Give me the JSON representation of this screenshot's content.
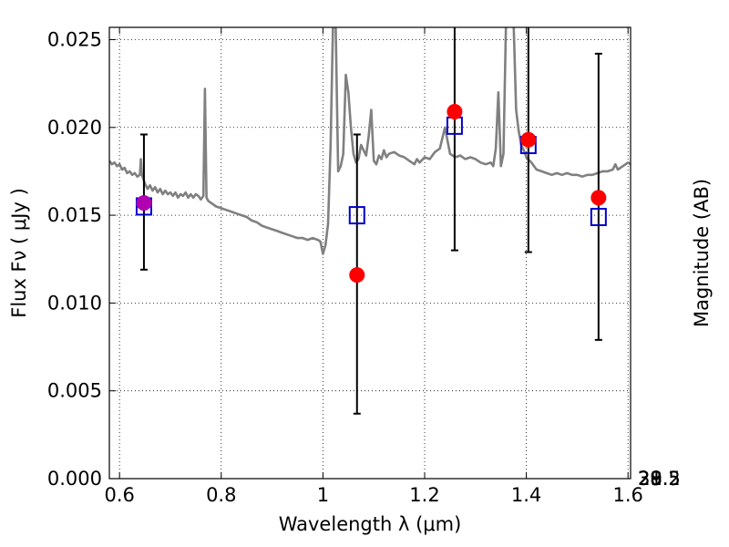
{
  "chart_data": {
    "type": "scatter",
    "xlabel": "Wavelength  λ (μm)",
    "ylabel": "Flux  Fν  ( μJy )",
    "ylabel_right": "Magnitude (AB)",
    "xlim": [
      0.58,
      1.605
    ],
    "ylim": [
      0.0,
      0.0257
    ],
    "grid": true,
    "x_ticks": [
      {
        "value": 0.6,
        "label": "0.6"
      },
      {
        "value": 0.8,
        "label": "0.8"
      },
      {
        "value": 1.0,
        "label": "1"
      },
      {
        "value": 1.2,
        "label": "1.2"
      },
      {
        "value": 1.4,
        "label": "1.4"
      },
      {
        "value": 1.6,
        "label": "1.6"
      }
    ],
    "y_ticks": [
      {
        "value": 0.0,
        "label": "0.000"
      },
      {
        "value": 0.005,
        "label": "0.005"
      },
      {
        "value": 0.01,
        "label": "0.010"
      },
      {
        "value": 0.015,
        "label": "0.015"
      },
      {
        "value": 0.02,
        "label": "0.020"
      },
      {
        "value": 0.025,
        "label": "0.025"
      }
    ],
    "right_ticks": [
      {
        "mag": 28.0,
        "label": "28"
      },
      {
        "mag": 28.2,
        "label": "28.2"
      },
      {
        "mag": 28.5,
        "label": "28.5"
      },
      {
        "mag": 29.0,
        "label": "29"
      },
      {
        "mag": 29.5,
        "label": "29.5"
      },
      {
        "mag": 30.0,
        "label": "30"
      },
      {
        "mag": 31.0,
        "label": "31"
      }
    ],
    "model_spectrum": {
      "color": "#808080",
      "points": [
        [
          0.58,
          0.0181
        ],
        [
          0.585,
          0.0179
        ],
        [
          0.59,
          0.018
        ],
        [
          0.595,
          0.0178
        ],
        [
          0.6,
          0.0179
        ],
        [
          0.605,
          0.0176
        ],
        [
          0.61,
          0.0177
        ],
        [
          0.615,
          0.0174
        ],
        [
          0.62,
          0.0175
        ],
        [
          0.625,
          0.0173
        ],
        [
          0.63,
          0.0174
        ],
        [
          0.635,
          0.0172
        ],
        [
          0.64,
          0.0173
        ],
        [
          0.642,
          0.0182
        ],
        [
          0.644,
          0.0173
        ],
        [
          0.65,
          0.0168
        ],
        [
          0.655,
          0.0165
        ],
        [
          0.66,
          0.0167
        ],
        [
          0.665,
          0.0164
        ],
        [
          0.67,
          0.0166
        ],
        [
          0.675,
          0.0163
        ],
        [
          0.68,
          0.0165
        ],
        [
          0.685,
          0.0162
        ],
        [
          0.69,
          0.0164
        ],
        [
          0.695,
          0.0162
        ],
        [
          0.7,
          0.0163
        ],
        [
          0.705,
          0.0161
        ],
        [
          0.71,
          0.0163
        ],
        [
          0.715,
          0.016
        ],
        [
          0.72,
          0.0162
        ],
        [
          0.725,
          0.0161
        ],
        [
          0.73,
          0.0163
        ],
        [
          0.735,
          0.016
        ],
        [
          0.74,
          0.0162
        ],
        [
          0.745,
          0.016
        ],
        [
          0.75,
          0.0162
        ],
        [
          0.755,
          0.0161
        ],
        [
          0.76,
          0.0159
        ],
        [
          0.765,
          0.0161
        ],
        [
          0.768,
          0.0222
        ],
        [
          0.771,
          0.016
        ],
        [
          0.775,
          0.0158
        ],
        [
          0.78,
          0.0157
        ],
        [
          0.79,
          0.0155
        ],
        [
          0.8,
          0.0154
        ],
        [
          0.81,
          0.0153
        ],
        [
          0.82,
          0.0152
        ],
        [
          0.83,
          0.0151
        ],
        [
          0.84,
          0.015
        ],
        [
          0.85,
          0.0149
        ],
        [
          0.86,
          0.0147
        ],
        [
          0.87,
          0.0146
        ],
        [
          0.88,
          0.0144
        ],
        [
          0.89,
          0.0143
        ],
        [
          0.9,
          0.0142
        ],
        [
          0.91,
          0.0141
        ],
        [
          0.92,
          0.014
        ],
        [
          0.93,
          0.0139
        ],
        [
          0.94,
          0.0138
        ],
        [
          0.95,
          0.0137
        ],
        [
          0.96,
          0.0137
        ],
        [
          0.97,
          0.0136
        ],
        [
          0.98,
          0.0137
        ],
        [
          0.99,
          0.0136
        ],
        [
          0.995,
          0.0135
        ],
        [
          1.0,
          0.0128
        ],
        [
          1.005,
          0.0133
        ],
        [
          1.01,
          0.0145
        ],
        [
          1.015,
          0.019
        ],
        [
          1.02,
          0.026
        ],
        [
          1.025,
          0.026
        ],
        [
          1.03,
          0.0175
        ],
        [
          1.035,
          0.0178
        ],
        [
          1.04,
          0.0185
        ],
        [
          1.045,
          0.023
        ],
        [
          1.05,
          0.022
        ],
        [
          1.055,
          0.02
        ],
        [
          1.06,
          0.0185
        ],
        [
          1.065,
          0.018
        ],
        [
          1.07,
          0.0182
        ],
        [
          1.075,
          0.019
        ],
        [
          1.08,
          0.0187
        ],
        [
          1.085,
          0.0184
        ],
        [
          1.09,
          0.0195
        ],
        [
          1.095,
          0.021
        ],
        [
          1.1,
          0.0181
        ],
        [
          1.105,
          0.0179
        ],
        [
          1.11,
          0.0184
        ],
        [
          1.115,
          0.0182
        ],
        [
          1.12,
          0.0187
        ],
        [
          1.125,
          0.0183
        ],
        [
          1.13,
          0.0185
        ],
        [
          1.14,
          0.0186
        ],
        [
          1.15,
          0.0184
        ],
        [
          1.16,
          0.0183
        ],
        [
          1.17,
          0.0181
        ],
        [
          1.18,
          0.0179
        ],
        [
          1.185,
          0.0182
        ],
        [
          1.19,
          0.018
        ],
        [
          1.2,
          0.0183
        ],
        [
          1.21,
          0.0182
        ],
        [
          1.22,
          0.0186
        ],
        [
          1.23,
          0.0188
        ],
        [
          1.24,
          0.02
        ],
        [
          1.25,
          0.0185
        ],
        [
          1.26,
          0.0183
        ],
        [
          1.27,
          0.0184
        ],
        [
          1.28,
          0.0182
        ],
        [
          1.29,
          0.0183
        ],
        [
          1.3,
          0.0182
        ],
        [
          1.31,
          0.018
        ],
        [
          1.32,
          0.0179
        ],
        [
          1.33,
          0.018
        ],
        [
          1.335,
          0.0178
        ],
        [
          1.34,
          0.0188
        ],
        [
          1.345,
          0.022
        ],
        [
          1.35,
          0.0178
        ],
        [
          1.355,
          0.0185
        ],
        [
          1.36,
          0.026
        ],
        [
          1.365,
          0.026
        ],
        [
          1.37,
          0.026
        ],
        [
          1.375,
          0.026
        ],
        [
          1.38,
          0.021
        ],
        [
          1.385,
          0.0198
        ],
        [
          1.39,
          0.019
        ],
        [
          1.395,
          0.0187
        ],
        [
          1.4,
          0.0183
        ],
        [
          1.41,
          0.018
        ],
        [
          1.42,
          0.0176
        ],
        [
          1.43,
          0.0175
        ],
        [
          1.44,
          0.0174
        ],
        [
          1.45,
          0.0173
        ],
        [
          1.46,
          0.0174
        ],
        [
          1.47,
          0.0173
        ],
        [
          1.48,
          0.0174
        ],
        [
          1.49,
          0.0173
        ],
        [
          1.5,
          0.0173
        ],
        [
          1.51,
          0.0172
        ],
        [
          1.52,
          0.0173
        ],
        [
          1.53,
          0.0173
        ],
        [
          1.54,
          0.0174
        ],
        [
          1.55,
          0.0175
        ],
        [
          1.56,
          0.0175
        ],
        [
          1.57,
          0.0176
        ],
        [
          1.575,
          0.0179
        ],
        [
          1.58,
          0.0176
        ],
        [
          1.59,
          0.0178
        ],
        [
          1.6,
          0.018
        ],
        [
          1.605,
          0.0179
        ]
      ]
    },
    "observed": {
      "color": "#ff0000",
      "points": [
        {
          "x": 0.648,
          "y": 0.0157,
          "yerr_low": 0.0119,
          "yerr_high": 0.0196
        },
        {
          "x": 1.067,
          "y": 0.0116,
          "yerr_low": 0.0037,
          "yerr_high": 0.0196
        },
        {
          "x": 1.259,
          "y": 0.0209,
          "yerr_low": 0.013,
          "yerr_high": 0.0258
        },
        {
          "x": 1.404,
          "y": 0.0193,
          "yerr_low": 0.0129,
          "yerr_high": 0.0258
        },
        {
          "x": 1.542,
          "y": 0.016,
          "yerr_low": 0.0079,
          "yerr_high": 0.0242
        }
      ]
    },
    "model_photometry": {
      "color": "#0000cc",
      "points": [
        {
          "x": 0.648,
          "y": 0.0155
        },
        {
          "x": 1.067,
          "y": 0.015
        },
        {
          "x": 1.259,
          "y": 0.0201
        },
        {
          "x": 1.404,
          "y": 0.019
        },
        {
          "x": 1.542,
          "y": 0.0149
        }
      ]
    }
  }
}
